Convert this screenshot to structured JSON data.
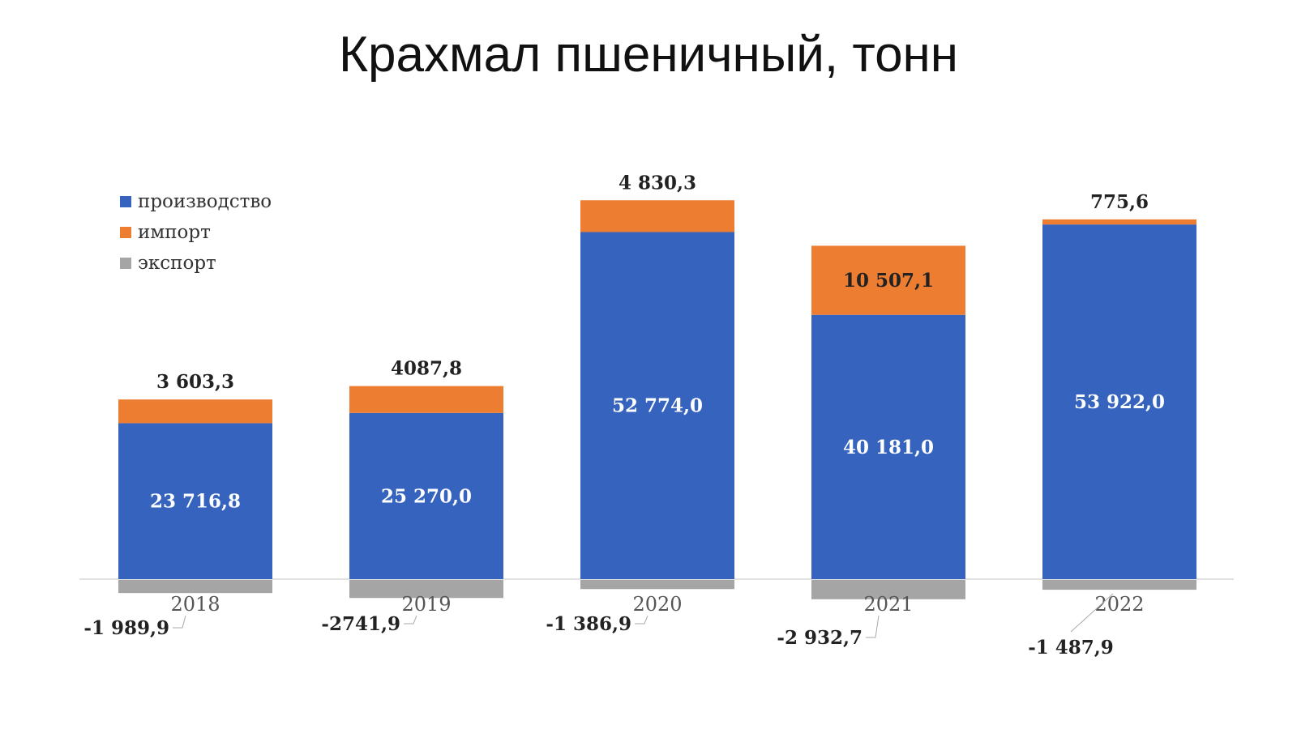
{
  "title": "Крахмал пшеничный, тонн",
  "legend": [
    {
      "name": "производство",
      "color": "#3563be"
    },
    {
      "name": "импорт",
      "color": "#ed7d31"
    },
    {
      "name": "экспорт",
      "color": "#a5a5a5"
    }
  ],
  "chart_data": {
    "type": "bar",
    "stacked": true,
    "title": "Крахмал пшеничный, тонн",
    "categories": [
      "2018",
      "2019",
      "2020",
      "2021",
      "2022"
    ],
    "series": [
      {
        "name": "производство",
        "color": "#3563be",
        "values": [
          23716.8,
          25270.0,
          52774.0,
          40181.0,
          53922.0
        ],
        "labels": [
          "23 716,8",
          "25 270,0",
          "52 774,0",
          "40 181,0",
          "53 922,0"
        ]
      },
      {
        "name": "импорт",
        "color": "#ed7d31",
        "values": [
          3603.3,
          4087.8,
          4830.3,
          10507.1,
          775.6
        ],
        "labels": [
          "3 603,3",
          "4087,8",
          "4 830,3",
          "10 507,1",
          "775,6"
        ]
      },
      {
        "name": "экспорт",
        "color": "#a5a5a5",
        "values": [
          -1989.9,
          -2741.9,
          -1386.9,
          -2932.7,
          -1487.9
        ],
        "labels": [
          "-1 989,9",
          "-2741,9",
          "-1 386,9",
          "-2 932,7",
          "-1 487,9"
        ]
      }
    ],
    "legend_position": "top-left",
    "grid": false,
    "ylim": [
      -3000,
      58000
    ]
  }
}
